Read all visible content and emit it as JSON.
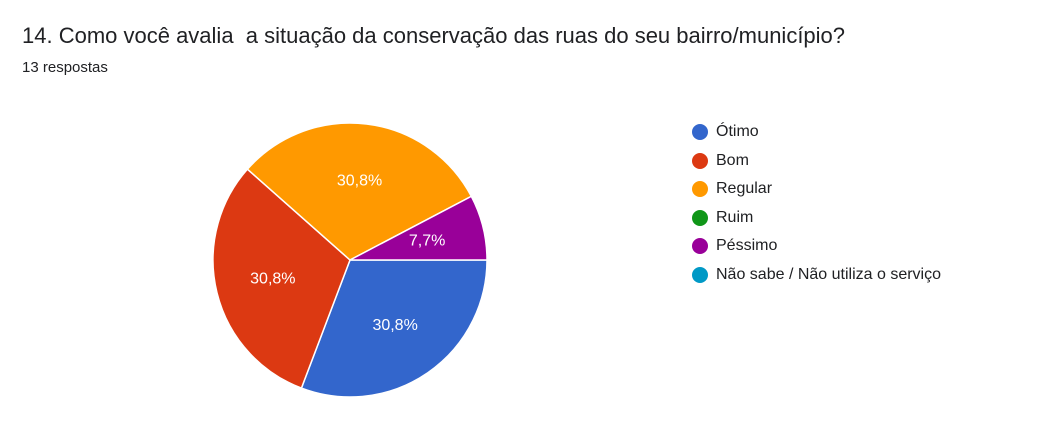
{
  "header": {
    "title": "14. Como você avalia  a situação da conservação das ruas do seu bairro/município?",
    "responses": "13 respostas"
  },
  "chart_data": {
    "type": "pie",
    "categories": [
      "Ótimo",
      "Bom",
      "Regular",
      "Ruim",
      "Péssimo",
      "Não sabe / Não utiliza o serviço"
    ],
    "values": [
      4,
      4,
      4,
      0,
      1,
      0
    ],
    "percent_labels": [
      "30,8%",
      "30,8%",
      "30,8%",
      "",
      "7,7%",
      ""
    ],
    "colors": [
      "#3366cc",
      "#dc3912",
      "#ff9900",
      "#109618",
      "#990099",
      "#0099c6"
    ],
    "legend_position": "right",
    "start": "3 o'clock",
    "direction": "clockwise"
  }
}
